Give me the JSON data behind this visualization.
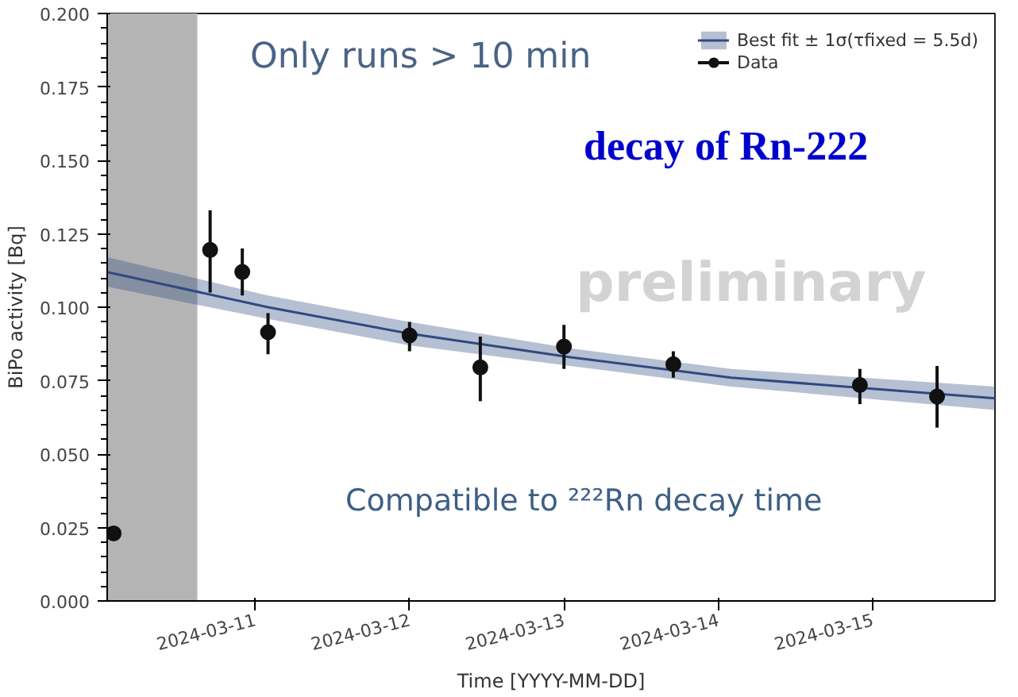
{
  "chart_data": {
    "type": "scatter",
    "xlabel": "Time [YYYY-MM-DD]",
    "ylabel": "BiPo activity [Bq]",
    "xlim": [
      "2024-03-10T01:00",
      "2024-03-15T19:00"
    ],
    "xticks": [
      {
        "value": "2024-03-11",
        "label": "2024-03-11"
      },
      {
        "value": "2024-03-12",
        "label": "2024-03-12"
      },
      {
        "value": "2024-03-13",
        "label": "2024-03-13"
      },
      {
        "value": "2024-03-14",
        "label": "2024-03-14"
      },
      {
        "value": "2024-03-15",
        "label": "2024-03-15"
      }
    ],
    "ylim": [
      0,
      0.2
    ],
    "yticks": [
      {
        "value": 0,
        "label": "0.000"
      },
      {
        "value": 0.025,
        "label": "0.025"
      },
      {
        "value": 0.05,
        "label": "0.050"
      },
      {
        "value": 0.075,
        "label": "0.075"
      },
      {
        "value": 0.1,
        "label": "0.100"
      },
      {
        "value": 0.125,
        "label": "0.125"
      },
      {
        "value": 0.15,
        "label": "0.150"
      },
      {
        "value": 0.175,
        "label": "0.175"
      },
      {
        "value": 0.2,
        "label": "0.200"
      }
    ],
    "series": [
      {
        "name": "Best fit ± 1σ(τfixed = 5.5d)",
        "type": "line",
        "color": "#2f4a80",
        "x": [
          "2024-03-10T01:00",
          "2024-03-11T02:00",
          "2024-03-12T00:00",
          "2024-03-13T01:00",
          "2024-03-14T02:00",
          "2024-03-15T19:00"
        ],
        "values": [
          0.112,
          0.1,
          0.091,
          0.083,
          0.076,
          0.069
        ],
        "lower": [
          0.107,
          0.096,
          0.087,
          0.08,
          0.073,
          0.065
        ],
        "upper": [
          0.117,
          0.104,
          0.095,
          0.086,
          0.079,
          0.073
        ]
      },
      {
        "name": "Data",
        "color": "#111111",
        "marker": "circle",
        "x": [
          "2024-03-10T02:00",
          "2024-03-10T17:00",
          "2024-03-10T22:00",
          "2024-03-11T02:00",
          "2024-03-12T00:00",
          "2024-03-12T11:00",
          "2024-03-13T00:00",
          "2024-03-13T17:00",
          "2024-03-14T22:00",
          "2024-03-15T10:00"
        ],
        "values": [
          0.023,
          0.1195,
          0.112,
          0.0915,
          0.0904,
          0.0795,
          0.0866,
          0.0806,
          0.0735,
          0.0696
        ],
        "errors": [
          null,
          [
            0.105,
            0.133
          ],
          [
            0.104,
            0.12
          ],
          [
            0.084,
            0.098
          ],
          [
            0.085,
            0.095
          ],
          [
            0.068,
            0.09
          ],
          [
            0.079,
            0.094
          ],
          [
            0.076,
            0.085
          ],
          [
            0.067,
            0.079
          ],
          [
            0.059,
            0.08
          ]
        ]
      }
    ],
    "bands": [
      {
        "axis": "x",
        "from": "2024-03-10T01:00",
        "to": "2024-03-10T15:00",
        "color": "#b4b4b4"
      }
    ],
    "annotations": [
      "Only runs > 10 min",
      "decay of Rn-222",
      "preliminary",
      "Compatible to ²²²Rn decay time"
    ],
    "legend": "top right",
    "grid": false
  }
}
